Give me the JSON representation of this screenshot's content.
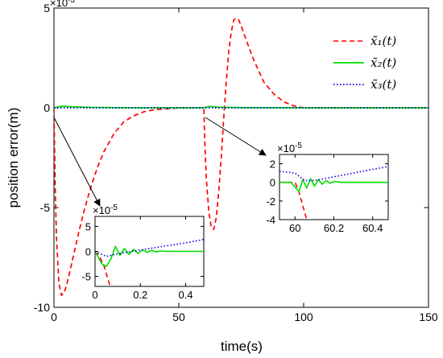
{
  "chart_data": [
    {
      "type": "line",
      "xlabel": "time(s)",
      "ylabel": "position error(m)",
      "xlim": [
        0,
        150
      ],
      "ylim": [
        -0.01,
        0.005
      ],
      "xticks": [
        "0",
        "50",
        "100",
        "150"
      ],
      "yticks": [
        "5",
        "0",
        "-5",
        "-10"
      ],
      "y_exponent": "-3",
      "grid": false,
      "legend": "top-right",
      "colors": [
        "#ff0000",
        "#00dd00",
        "#0000dd"
      ],
      "line_styles": [
        "dashed",
        "solid",
        "dotted"
      ],
      "legend_entries": [
        "x̃₁(t)",
        "x̃₂(t)",
        "x̃₃(t)"
      ],
      "series": [
        {
          "name": "x̃₁(t)",
          "x": [
            0,
            0.5,
            1,
            2,
            3,
            4,
            5,
            6,
            8,
            10,
            12,
            14,
            16,
            18,
            20,
            24,
            28,
            32,
            36,
            40,
            50,
            59.8,
            60,
            60.5,
            61,
            62,
            63,
            64,
            65,
            66,
            67,
            68,
            69,
            70,
            71,
            72,
            73,
            74,
            75,
            77,
            80,
            84,
            88,
            92,
            96,
            100,
            110,
            120,
            150
          ],
          "y": [
            0,
            -0.004,
            -0.0065,
            -0.0088,
            -0.0094,
            -0.0093,
            -0.0089,
            -0.0084,
            -0.0073,
            -0.0062,
            -0.0052,
            -0.0043,
            -0.0035,
            -0.0028,
            -0.0022,
            -0.0013,
            -0.0007,
            -0.0004,
            -0.0002,
            -0.0001,
            0,
            0,
            0,
            -0.002,
            -0.0035,
            -0.0052,
            -0.006,
            -0.0061,
            -0.0055,
            -0.0042,
            -0.0025,
            -0.0005,
            0.0013,
            0.0028,
            0.0038,
            0.0044,
            0.0045,
            0.0044,
            0.0041,
            0.0034,
            0.0024,
            0.0013,
            0.0007,
            0.0003,
            0.0001,
            0,
            0,
            0,
            0
          ]
        },
        {
          "name": "x̃₂(t)",
          "x": [
            0,
            3,
            8,
            15,
            30,
            60,
            62,
            66,
            75,
            100,
            150
          ],
          "y": [
            0,
            8e-05,
            5e-05,
            2e-05,
            0,
            0,
            7e-05,
            3e-05,
            1e-05,
            0,
            0
          ]
        },
        {
          "name": "x̃₃(t)",
          "x": [
            0,
            60,
            150
          ],
          "y": [
            0,
            0,
            0
          ]
        }
      ],
      "annotations": [
        "arrow from (0,0) to inset 1",
        "arrow from (60,0) to inset 2"
      ]
    },
    {
      "type": "line",
      "role": "inset-1",
      "xlim": [
        0,
        0.48
      ],
      "ylim": [
        -7e-05,
        7e-05
      ],
      "xticks": [
        "0",
        "0.2",
        "0.4"
      ],
      "yticks": [
        "5",
        "0",
        "-5"
      ],
      "y_exponent": "-5",
      "series": [
        {
          "name": "x̃₁(t)",
          "x": [
            0,
            0.02,
            0.04,
            0.06,
            0.08
          ],
          "y": [
            0,
            -1e-05,
            -3e-05,
            -6e-05,
            -9e-05
          ]
        },
        {
          "name": "x̃₂(t)",
          "x": [
            0,
            0.03,
            0.05,
            0.07,
            0.09,
            0.11,
            0.13,
            0.15,
            0.17,
            0.19,
            0.21,
            0.23,
            0.25,
            0.27,
            0.29,
            0.31,
            0.35,
            0.4,
            0.48
          ],
          "y": [
            0,
            -2.5e-05,
            -3e-05,
            -1.5e-05,
            1e-05,
            -8e-06,
            6e-06,
            -6e-06,
            4e-06,
            -4e-06,
            3e-06,
            -2e-06,
            2e-06,
            -1e-06,
            1e-06,
            0,
            0,
            0,
            0
          ]
        },
        {
          "name": "x̃₃(t)",
          "x": [
            0,
            0.05,
            0.1,
            0.2,
            0.3,
            0.4,
            0.48
          ],
          "y": [
            0,
            -1e-05,
            -5e-06,
            3e-06,
            1e-05,
            1.7e-05,
            2.4e-05
          ]
        }
      ]
    },
    {
      "type": "line",
      "role": "inset-2",
      "xlim": [
        59.92,
        60.48
      ],
      "ylim": [
        -4e-05,
        3e-05
      ],
      "xticks": [
        "60",
        "60.2",
        "60.4"
      ],
      "yticks": [
        "2",
        "0",
        "-2",
        "-4"
      ],
      "y_exponent": "-5",
      "series": [
        {
          "name": "x̃₁(t)",
          "x": [
            59.92,
            60.0,
            60.02,
            60.04,
            60.06
          ],
          "y": [
            0,
            0,
            -1e-05,
            -2.5e-05,
            -4e-05
          ]
        },
        {
          "name": "x̃₂(t)",
          "x": [
            59.92,
            59.98,
            60.0,
            60.02,
            60.04,
            60.06,
            60.08,
            60.1,
            60.12,
            60.14,
            60.16,
            60.18,
            60.2,
            60.24,
            60.3,
            60.4,
            60.48
          ],
          "y": [
            0,
            0,
            -5e-06,
            -1e-05,
            3e-06,
            -6e-06,
            4e-06,
            -4e-06,
            3e-06,
            -2e-06,
            2e-06,
            -1e-06,
            1e-06,
            0,
            0,
            0,
            0
          ]
        },
        {
          "name": "x̃₃(t)",
          "x": [
            59.92,
            60.0,
            60.05,
            60.1,
            60.2,
            60.3,
            60.4,
            60.48
          ],
          "y": [
            1.2e-05,
            1e-05,
            2e-06,
            2e-06,
            6e-06,
            1e-05,
            1.4e-05,
            1.7e-05
          ]
        }
      ]
    }
  ]
}
